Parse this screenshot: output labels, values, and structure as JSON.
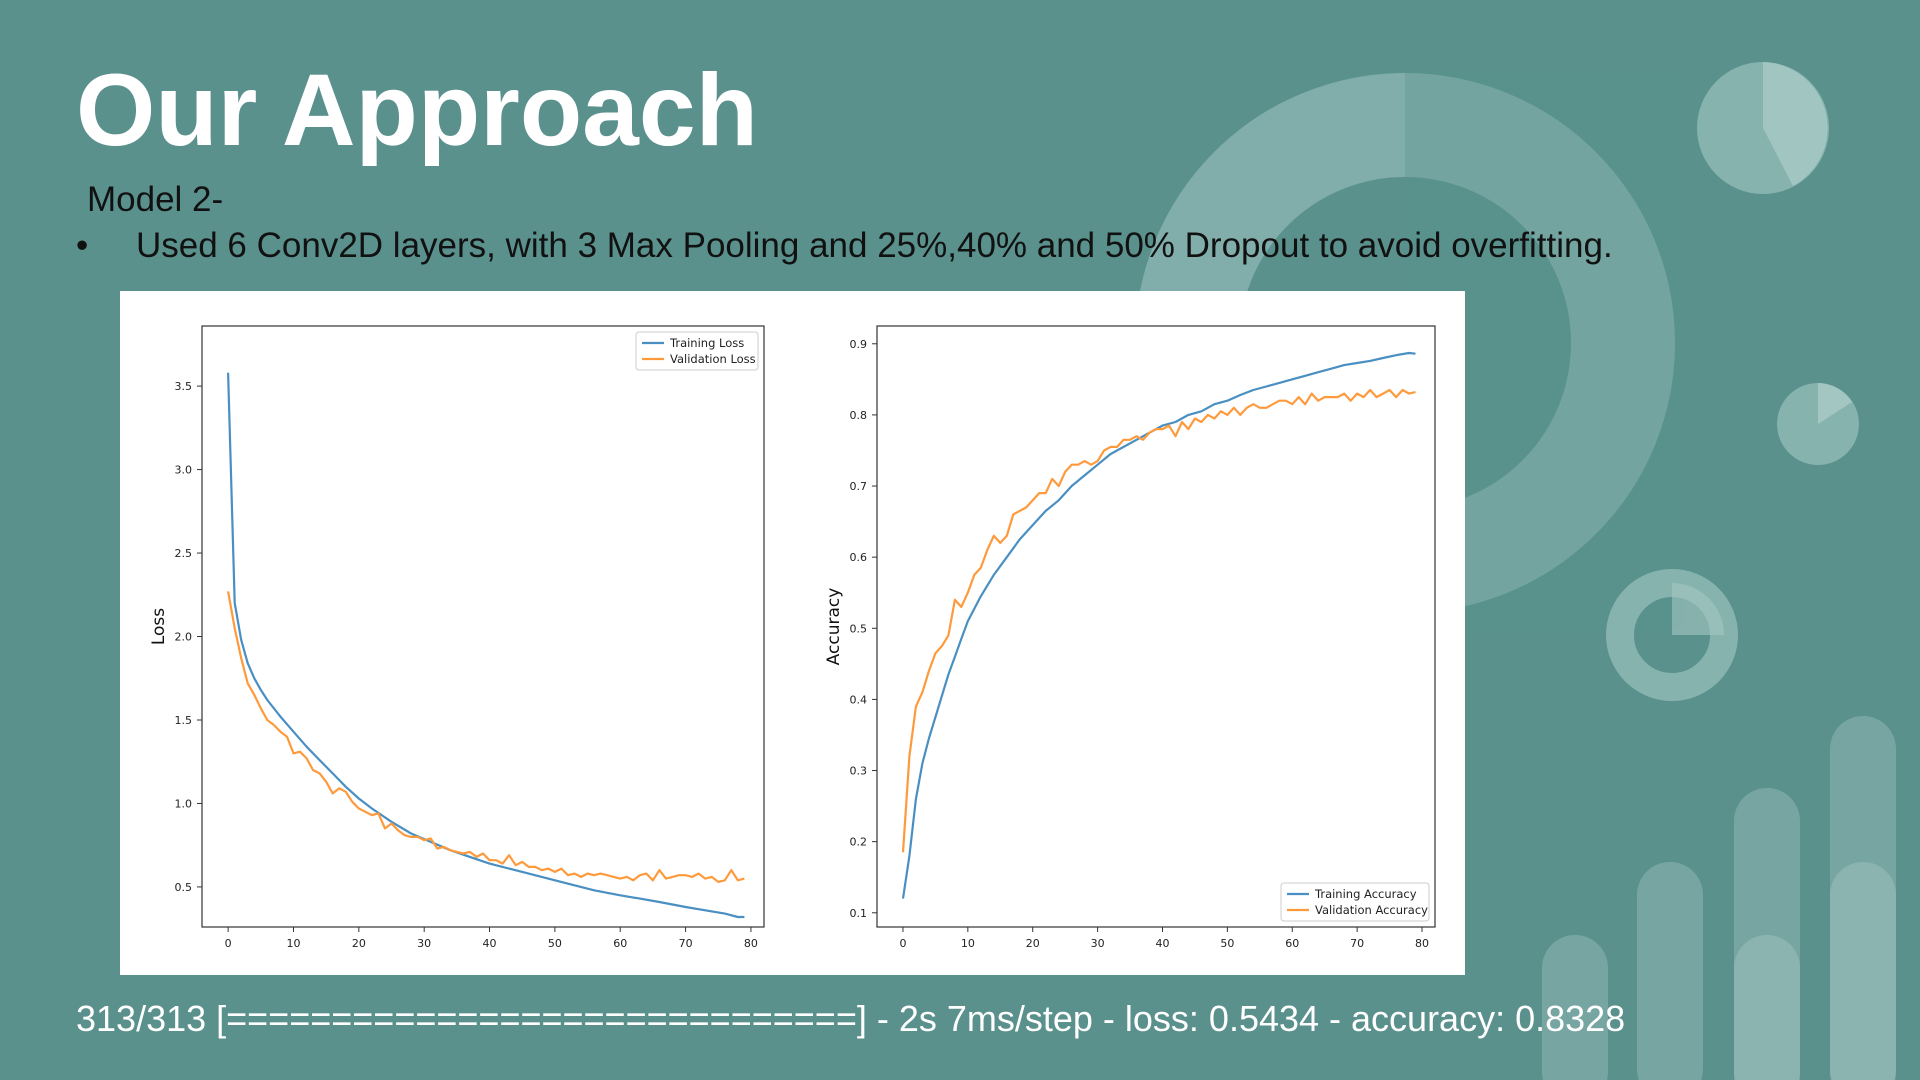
{
  "slide": {
    "title": "Our Approach",
    "subtitle": "Model 2-",
    "bullet_symbol": "•",
    "bullet_text": "Used 6 Conv2D layers, with 3 Max Pooling and 25%,40% and 50% Dropout to avoid overfitting.",
    "footer_text": "313/313 [==============================] - 2s 7ms/step - loss: 0.5434 - accuracy: 0.8328"
  },
  "colors": {
    "background": "#5a918d",
    "title": "#ffffff",
    "body_text": "#111111",
    "training_series": "#4a8fc2",
    "validation_series": "#ff9a3c"
  },
  "chart_data": [
    {
      "type": "line",
      "title": "",
      "xlabel": "",
      "ylabel": "Loss",
      "xlim": [
        -4,
        82
      ],
      "ylim": [
        0.26,
        3.86
      ],
      "xticks": [
        0,
        10,
        20,
        30,
        40,
        50,
        60,
        70,
        80
      ],
      "yticks": [
        0.5,
        1.0,
        1.5,
        2.0,
        2.5,
        3.0,
        3.5
      ],
      "legend_position": "upper-right",
      "series": [
        {
          "name": "Training Loss",
          "color": "#4a8fc2",
          "x": [
            0,
            1,
            2,
            3,
            4,
            5,
            6,
            8,
            10,
            12,
            14,
            16,
            18,
            20,
            22,
            25,
            28,
            31,
            34,
            37,
            40,
            43,
            46,
            50,
            53,
            56,
            60,
            63,
            66,
            70,
            73,
            76,
            78,
            79
          ],
          "y": [
            3.58,
            2.2,
            1.98,
            1.84,
            1.75,
            1.68,
            1.62,
            1.52,
            1.43,
            1.34,
            1.26,
            1.18,
            1.1,
            1.03,
            0.97,
            0.89,
            0.82,
            0.77,
            0.72,
            0.68,
            0.64,
            0.61,
            0.58,
            0.54,
            0.51,
            0.48,
            0.45,
            0.43,
            0.41,
            0.38,
            0.36,
            0.34,
            0.32,
            0.32
          ]
        },
        {
          "name": "Validation Loss",
          "color": "#ff9a3c",
          "x": [
            0,
            1,
            2,
            3,
            4,
            5,
            6,
            7,
            8,
            9,
            10,
            11,
            12,
            13,
            14,
            15,
            16,
            17,
            18,
            19,
            20,
            21,
            22,
            23,
            24,
            25,
            26,
            27,
            28,
            29,
            30,
            31,
            32,
            33,
            34,
            35,
            36,
            37,
            38,
            39,
            40,
            41,
            42,
            43,
            44,
            45,
            46,
            47,
            48,
            49,
            50,
            51,
            52,
            53,
            54,
            55,
            56,
            57,
            58,
            59,
            60,
            61,
            62,
            63,
            64,
            65,
            66,
            67,
            68,
            69,
            70,
            71,
            72,
            73,
            74,
            75,
            76,
            77,
            78,
            79
          ],
          "y": [
            2.27,
            2.05,
            1.87,
            1.72,
            1.65,
            1.57,
            1.5,
            1.47,
            1.43,
            1.4,
            1.3,
            1.31,
            1.27,
            1.2,
            1.18,
            1.13,
            1.06,
            1.09,
            1.07,
            1.01,
            0.97,
            0.95,
            0.93,
            0.94,
            0.85,
            0.88,
            0.84,
            0.81,
            0.8,
            0.8,
            0.78,
            0.79,
            0.73,
            0.74,
            0.72,
            0.71,
            0.7,
            0.71,
            0.68,
            0.7,
            0.66,
            0.66,
            0.64,
            0.69,
            0.63,
            0.65,
            0.62,
            0.62,
            0.6,
            0.61,
            0.59,
            0.61,
            0.57,
            0.58,
            0.56,
            0.58,
            0.57,
            0.58,
            0.57,
            0.56,
            0.55,
            0.56,
            0.54,
            0.57,
            0.58,
            0.54,
            0.6,
            0.55,
            0.56,
            0.57,
            0.57,
            0.56,
            0.58,
            0.55,
            0.56,
            0.53,
            0.54,
            0.6,
            0.54,
            0.55
          ]
        }
      ]
    },
    {
      "type": "line",
      "title": "",
      "xlabel": "",
      "ylabel": "Accuracy",
      "xlim": [
        -4,
        82
      ],
      "ylim": [
        0.08,
        0.925
      ],
      "xticks": [
        0,
        10,
        20,
        30,
        40,
        50,
        60,
        70,
        80
      ],
      "yticks": [
        0.1,
        0.2,
        0.3,
        0.4,
        0.5,
        0.6,
        0.7,
        0.8,
        0.9
      ],
      "legend_position": "lower-right",
      "series": [
        {
          "name": "Training Accuracy",
          "color": "#4a8fc2",
          "x": [
            0,
            1,
            2,
            3,
            4,
            5,
            6,
            7,
            8,
            9,
            10,
            12,
            14,
            16,
            18,
            20,
            22,
            24,
            26,
            28,
            30,
            32,
            34,
            36,
            38,
            40,
            42,
            44,
            46,
            48,
            50,
            52,
            54,
            56,
            58,
            60,
            62,
            64,
            66,
            68,
            70,
            72,
            74,
            76,
            78,
            79
          ],
          "y": [
            0.12,
            0.18,
            0.26,
            0.31,
            0.345,
            0.375,
            0.405,
            0.435,
            0.46,
            0.485,
            0.51,
            0.545,
            0.575,
            0.6,
            0.625,
            0.645,
            0.665,
            0.68,
            0.7,
            0.715,
            0.73,
            0.745,
            0.755,
            0.765,
            0.775,
            0.785,
            0.79,
            0.8,
            0.805,
            0.815,
            0.82,
            0.828,
            0.835,
            0.84,
            0.845,
            0.85,
            0.855,
            0.86,
            0.865,
            0.87,
            0.873,
            0.876,
            0.88,
            0.884,
            0.887,
            0.886
          ]
        },
        {
          "name": "Validation Accuracy",
          "color": "#ff9a3c",
          "x": [
            0,
            1,
            2,
            3,
            4,
            5,
            6,
            7,
            8,
            9,
            10,
            11,
            12,
            13,
            14,
            15,
            16,
            17,
            18,
            19,
            20,
            21,
            22,
            23,
            24,
            25,
            26,
            27,
            28,
            29,
            30,
            31,
            32,
            33,
            34,
            35,
            36,
            37,
            38,
            39,
            40,
            41,
            42,
            43,
            44,
            45,
            46,
            47,
            48,
            49,
            50,
            51,
            52,
            53,
            54,
            55,
            56,
            57,
            58,
            59,
            60,
            61,
            62,
            63,
            64,
            65,
            66,
            67,
            68,
            69,
            70,
            71,
            72,
            73,
            74,
            75,
            76,
            77,
            78,
            79
          ],
          "y": [
            0.185,
            0.32,
            0.39,
            0.41,
            0.44,
            0.465,
            0.475,
            0.49,
            0.54,
            0.53,
            0.55,
            0.575,
            0.585,
            0.61,
            0.63,
            0.62,
            0.63,
            0.66,
            0.665,
            0.67,
            0.68,
            0.69,
            0.69,
            0.71,
            0.7,
            0.72,
            0.73,
            0.73,
            0.735,
            0.73,
            0.735,
            0.75,
            0.755,
            0.755,
            0.765,
            0.765,
            0.77,
            0.765,
            0.775,
            0.78,
            0.78,
            0.785,
            0.77,
            0.79,
            0.78,
            0.795,
            0.79,
            0.8,
            0.795,
            0.805,
            0.8,
            0.81,
            0.8,
            0.81,
            0.815,
            0.81,
            0.81,
            0.815,
            0.82,
            0.82,
            0.815,
            0.825,
            0.815,
            0.83,
            0.82,
            0.825,
            0.825,
            0.825,
            0.83,
            0.82,
            0.83,
            0.825,
            0.835,
            0.825,
            0.83,
            0.835,
            0.825,
            0.835,
            0.83,
            0.832
          ]
        }
      ]
    }
  ]
}
